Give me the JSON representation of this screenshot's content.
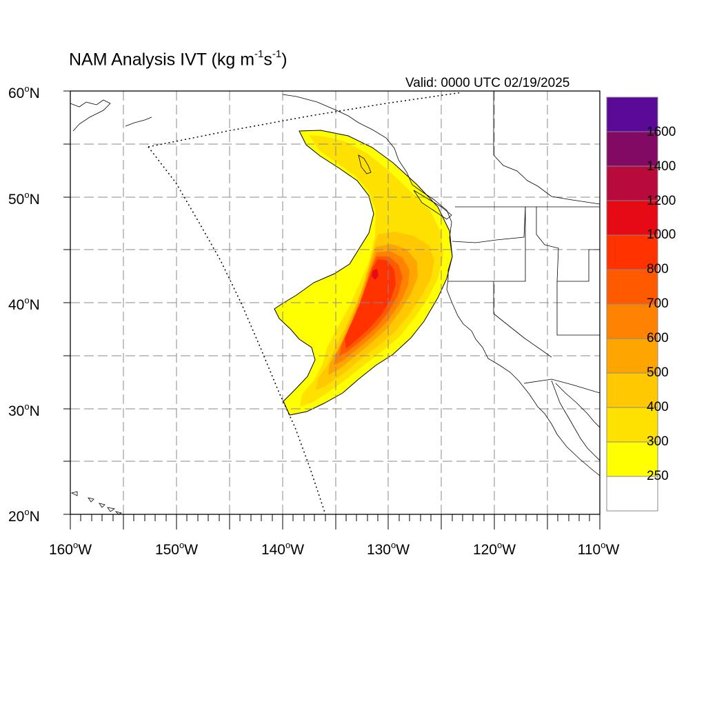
{
  "title": {
    "main": "NAM Analysis IVT (kg m",
    "sup1": "-1",
    "mid": "s",
    "sup2": "-1",
    "end": ")"
  },
  "valid_time": "Valid: 0000 UTC 02/19/2025",
  "map": {
    "projection": "cylindrical equidistant",
    "lon_range": [
      -160,
      -110
    ],
    "lat_range": [
      20,
      60
    ],
    "grid": "dashed every 5 degrees",
    "lat_labels": [
      {
        "value": "60",
        "deg": "o",
        "hemi": "N"
      },
      {
        "value": "50",
        "deg": "o",
        "hemi": "N"
      },
      {
        "value": "40",
        "deg": "o",
        "hemi": "N"
      },
      {
        "value": "30",
        "deg": "o",
        "hemi": "N"
      },
      {
        "value": "20",
        "deg": "o",
        "hemi": "N"
      }
    ],
    "lon_labels": [
      {
        "value": "160",
        "deg": "o",
        "hemi": "W"
      },
      {
        "value": "150",
        "deg": "o",
        "hemi": "W"
      },
      {
        "value": "140",
        "deg": "o",
        "hemi": "W"
      },
      {
        "value": "130",
        "deg": "o",
        "hemi": "W"
      },
      {
        "value": "120",
        "deg": "o",
        "hemi": "W"
      },
      {
        "value": "110",
        "deg": "o",
        "hemi": "W"
      }
    ]
  },
  "ivt_field": {
    "description_levels": [
      250,
      300,
      400,
      500,
      600,
      700,
      800,
      1000,
      1200,
      1400,
      1600
    ],
    "max_core_location": {
      "lon": -131.5,
      "lat": 42.5
    }
  },
  "colorbar": {
    "labels": [
      "1600",
      "1400",
      "1200",
      "1000",
      "800",
      "700",
      "600",
      "500",
      "400",
      "300",
      "250"
    ],
    "colors": [
      "#5a0a96",
      "#820a64",
      "#b90a3c",
      "#e60a14",
      "#ff3200",
      "#ff5a00",
      "#ff8200",
      "#ffa500",
      "#ffc800",
      "#ffe100",
      "#ffff00",
      "#ffffff"
    ]
  }
}
